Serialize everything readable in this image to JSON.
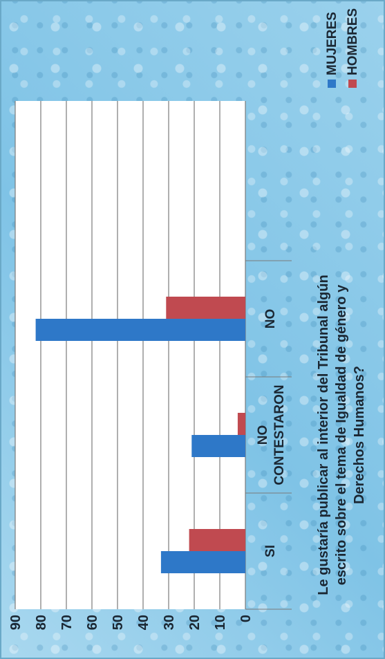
{
  "chart_data": {
    "type": "bar",
    "categories": [
      "SI",
      "NO CONTESTARON",
      "NO"
    ],
    "series": [
      {
        "name": "MUJERES",
        "color": "#2e78c8",
        "values": [
          33,
          21,
          82
        ]
      },
      {
        "name": "HOMBRES",
        "color": "#c04a50",
        "values": [
          22,
          3,
          31
        ]
      }
    ],
    "xlabel": "Le gustaría publicar al interior del Tribunal algún escrito sobre el tema de Igualdad de género y Derechos Humanos?",
    "ylabel": "",
    "ylim": [
      0,
      90
    ],
    "yticks": [
      0,
      10,
      20,
      30,
      40,
      50,
      60,
      70,
      80,
      90
    ],
    "grid": true,
    "legend_position": "right",
    "orientation": "rotated 90° counter-clockwise"
  }
}
